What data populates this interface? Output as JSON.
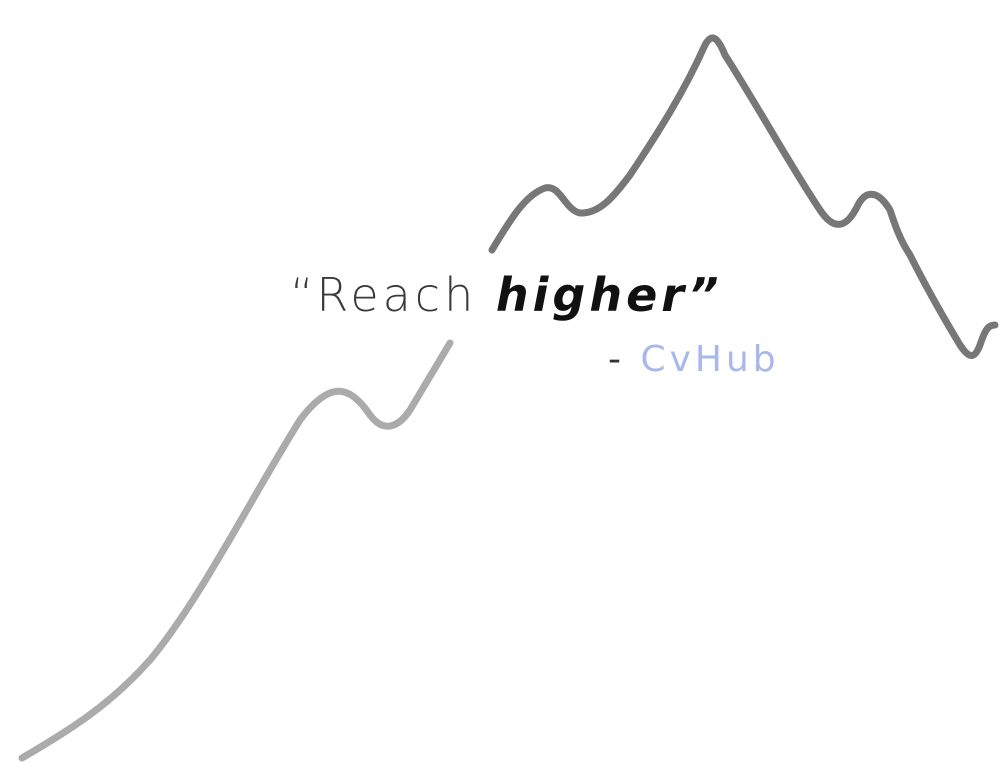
{
  "quote": {
    "open_mark": "“",
    "regular_text": "Reach ",
    "emphasis_text": "higher",
    "close_mark": "”"
  },
  "attribution": {
    "dash": "- ",
    "brand": "CvHub"
  },
  "colors": {
    "line_upper": "#777777",
    "line_lower": "#ababab",
    "brand": "#a9b8ea",
    "text": "#2f2f2f"
  },
  "icons": [
    "mountain-line-graphic"
  ]
}
